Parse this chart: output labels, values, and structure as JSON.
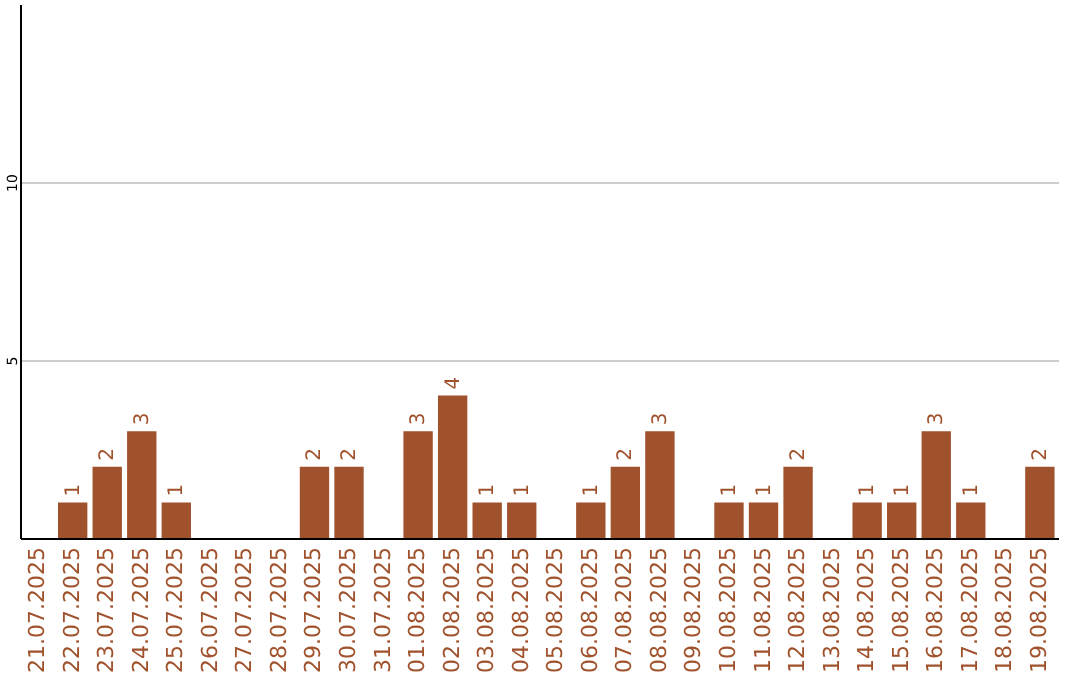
{
  "chart_data": {
    "type": "bar",
    "categories": [
      "21.07.2025",
      "22.07.2025",
      "23.07.2025",
      "24.07.2025",
      "25.07.2025",
      "26.07.2025",
      "27.07.2025",
      "28.07.2025",
      "29.07.2025",
      "30.07.2025",
      "31.07.2025",
      "01.08.2025",
      "02.08.2025",
      "03.08.2025",
      "04.08.2025",
      "05.08.2025",
      "06.08.2025",
      "07.08.2025",
      "08.08.2025",
      "09.08.2025",
      "10.08.2025",
      "11.08.2025",
      "12.08.2025",
      "13.08.2025",
      "14.08.2025",
      "15.08.2025",
      "16.08.2025",
      "17.08.2025",
      "18.08.2025",
      "19.08.2025"
    ],
    "values": [
      0,
      1,
      2,
      3,
      1,
      0,
      0,
      0,
      2,
      2,
      0,
      3,
      4,
      1,
      1,
      0,
      1,
      2,
      3,
      0,
      1,
      1,
      2,
      0,
      1,
      1,
      3,
      1,
      0,
      2
    ],
    "value_labels": [
      null,
      "1",
      "2",
      "3",
      "1",
      null,
      null,
      null,
      "2",
      "2",
      null,
      "3",
      "4",
      "1",
      "1",
      null,
      "1",
      "2",
      "3",
      null,
      "1",
      "1",
      "2",
      null,
      "1",
      "1",
      "3",
      "1",
      null,
      "2"
    ],
    "color": "#a0522d",
    "ylim": [
      0,
      15
    ],
    "yticks": [
      5,
      10
    ],
    "grid": "y"
  }
}
